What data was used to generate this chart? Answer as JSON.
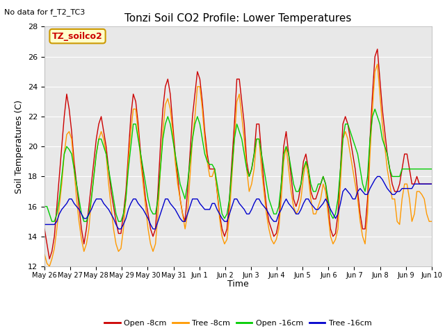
{
  "title": "Tonzi Soil CO2 Profile: Lower Temperatures",
  "subtitle": "No data for f_T2_TC3",
  "ylabel": "Soil Temperatures (C)",
  "xlabel": "Time",
  "ylim": [
    12,
    28
  ],
  "background_color": "#e8e8e8",
  "legend_label": "TZ_soilco2",
  "tick_labels": [
    "May 26",
    "May 27",
    "May 28",
    "May 29",
    "May 30",
    "May 31",
    "Jun 1",
    "Jun 2",
    "Jun 3",
    "Jun 4",
    "Jun 5",
    "Jun 6",
    "Jun 7",
    "Jun 8",
    "Jun 9",
    "Jun 10"
  ],
  "series": {
    "open_8cm": {
      "color": "#cc0000",
      "label": "Open -8cm",
      "values": [
        14.5,
        13.5,
        12.5,
        13.0,
        14.0,
        16.0,
        18.0,
        20.0,
        22.0,
        23.5,
        22.5,
        21.0,
        19.0,
        17.5,
        16.0,
        14.5,
        13.5,
        14.5,
        16.0,
        17.5,
        19.0,
        20.5,
        21.5,
        22.0,
        21.0,
        20.0,
        18.5,
        17.0,
        16.0,
        15.0,
        14.2,
        14.2,
        15.5,
        17.0,
        19.5,
        22.0,
        23.5,
        23.0,
        21.5,
        19.5,
        18.0,
        16.5,
        15.5,
        14.5,
        14.0,
        14.5,
        17.0,
        20.0,
        22.5,
        24.0,
        24.5,
        23.5,
        21.5,
        19.5,
        18.0,
        16.5,
        15.5,
        15.0,
        17.0,
        19.5,
        22.0,
        23.5,
        25.0,
        24.5,
        23.0,
        21.0,
        19.5,
        18.5,
        18.5,
        18.5,
        17.0,
        15.5,
        14.5,
        14.0,
        14.5,
        16.5,
        19.0,
        21.5,
        24.5,
        24.5,
        23.0,
        21.5,
        19.0,
        18.0,
        18.5,
        19.5,
        21.5,
        21.5,
        19.5,
        17.5,
        16.0,
        15.0,
        14.5,
        14.0,
        14.2,
        15.0,
        17.5,
        20.0,
        21.0,
        19.5,
        18.0,
        16.5,
        16.0,
        16.5,
        17.5,
        19.0,
        19.5,
        18.5,
        17.0,
        16.5,
        16.5,
        17.0,
        17.5,
        18.0,
        17.5,
        16.0,
        14.5,
        14.0,
        14.2,
        15.5,
        18.5,
        21.5,
        22.0,
        21.5,
        20.5,
        19.5,
        18.5,
        17.0,
        15.5,
        14.5,
        14.5,
        16.5,
        20.5,
        23.5,
        26.0,
        26.5,
        24.5,
        22.5,
        21.0,
        19.5,
        18.5,
        17.5,
        17.0,
        17.0,
        17.5,
        18.5,
        19.5,
        19.5,
        18.5,
        17.5,
        17.5,
        18.0,
        17.5,
        17.5,
        17.5,
        17.5,
        17.5,
        17.5
      ]
    },
    "tree_8cm": {
      "color": "#ff9900",
      "label": "Tree -8cm",
      "values": [
        12.8,
        12.2,
        12.0,
        12.5,
        13.2,
        14.5,
        16.0,
        17.5,
        19.5,
        20.8,
        21.0,
        20.5,
        18.5,
        16.5,
        15.0,
        13.8,
        13.0,
        13.5,
        14.5,
        16.5,
        18.0,
        19.5,
        20.5,
        21.0,
        20.5,
        19.5,
        17.5,
        16.0,
        14.5,
        13.5,
        13.0,
        13.2,
        14.5,
        16.5,
        19.0,
        21.0,
        22.5,
        22.5,
        21.0,
        19.0,
        17.5,
        16.0,
        14.5,
        13.5,
        13.0,
        13.5,
        15.5,
        18.5,
        21.0,
        22.8,
        23.2,
        22.5,
        21.0,
        19.0,
        17.5,
        16.5,
        15.5,
        14.5,
        15.5,
        18.0,
        20.5,
        22.0,
        24.0,
        24.0,
        22.5,
        20.5,
        19.0,
        18.0,
        18.0,
        18.5,
        17.0,
        15.2,
        14.0,
        13.5,
        13.8,
        15.5,
        18.0,
        20.5,
        23.0,
        23.5,
        22.0,
        20.5,
        18.5,
        17.0,
        17.5,
        18.5,
        20.5,
        20.5,
        18.5,
        17.0,
        15.5,
        14.5,
        13.8,
        13.5,
        13.8,
        14.5,
        16.5,
        19.0,
        20.0,
        18.5,
        17.0,
        16.0,
        15.5,
        15.8,
        16.5,
        18.0,
        19.0,
        18.0,
        16.5,
        15.5,
        15.5,
        16.0,
        16.5,
        17.5,
        17.0,
        15.5,
        14.0,
        13.5,
        13.8,
        14.5,
        17.5,
        20.5,
        21.0,
        20.5,
        19.5,
        18.5,
        17.5,
        16.5,
        15.0,
        14.0,
        13.5,
        15.5,
        19.5,
        22.5,
        25.0,
        25.5,
        23.5,
        21.5,
        20.0,
        18.5,
        17.5,
        16.5,
        16.5,
        15.0,
        14.8,
        16.5,
        17.5,
        17.5,
        16.5,
        15.0,
        15.5,
        17.0,
        17.0,
        16.8,
        16.5,
        15.5,
        15.0,
        15.0
      ]
    },
    "open_16cm": {
      "color": "#00cc00",
      "label": "Open -16cm",
      "values": [
        16.0,
        16.0,
        15.5,
        15.0,
        15.0,
        15.5,
        16.5,
        18.0,
        19.5,
        20.0,
        19.8,
        19.5,
        18.5,
        17.5,
        16.5,
        15.5,
        15.0,
        15.0,
        15.5,
        16.5,
        18.0,
        19.5,
        20.5,
        20.5,
        20.0,
        19.5,
        18.5,
        17.5,
        16.5,
        15.5,
        15.0,
        15.0,
        15.5,
        16.5,
        18.5,
        20.0,
        21.5,
        21.5,
        20.5,
        19.5,
        18.5,
        17.5,
        16.5,
        15.8,
        15.5,
        15.5,
        16.5,
        18.5,
        20.5,
        21.5,
        22.0,
        21.5,
        20.5,
        19.5,
        18.5,
        17.5,
        17.0,
        16.5,
        17.5,
        19.0,
        20.5,
        21.5,
        22.0,
        21.5,
        20.5,
        19.5,
        19.0,
        18.8,
        18.8,
        18.5,
        17.5,
        16.5,
        15.5,
        15.2,
        15.5,
        16.5,
        18.5,
        20.5,
        21.5,
        21.0,
        20.5,
        19.5,
        18.5,
        18.0,
        18.5,
        19.5,
        20.5,
        20.5,
        19.5,
        18.5,
        17.5,
        16.5,
        16.0,
        15.5,
        15.5,
        16.0,
        17.5,
        19.5,
        20.0,
        19.5,
        18.5,
        17.5,
        17.0,
        17.0,
        17.5,
        18.5,
        19.0,
        18.5,
        17.5,
        17.0,
        17.0,
        17.5,
        17.5,
        18.0,
        17.5,
        16.5,
        15.5,
        15.2,
        15.5,
        16.5,
        18.5,
        20.5,
        21.5,
        21.5,
        21.0,
        20.5,
        20.0,
        19.5,
        18.5,
        17.5,
        17.0,
        18.0,
        20.5,
        22.0,
        22.5,
        22.0,
        21.5,
        20.5,
        20.0,
        19.5,
        18.5,
        18.0,
        18.0,
        18.0,
        18.0,
        18.5,
        18.5,
        18.5,
        18.5,
        18.5,
        18.5,
        18.5,
        18.5,
        18.5,
        18.5,
        18.5,
        18.5,
        18.5
      ]
    },
    "tree_16cm": {
      "color": "#0000cc",
      "label": "Tree -16cm",
      "values": [
        14.8,
        14.8,
        14.8,
        14.8,
        14.8,
        15.0,
        15.5,
        15.8,
        16.0,
        16.2,
        16.5,
        16.5,
        16.2,
        16.0,
        15.8,
        15.5,
        15.2,
        15.2,
        15.5,
        15.8,
        16.2,
        16.5,
        16.5,
        16.5,
        16.2,
        16.0,
        15.8,
        15.5,
        15.2,
        14.8,
        14.5,
        14.5,
        14.8,
        15.2,
        15.8,
        16.2,
        16.5,
        16.5,
        16.2,
        16.0,
        15.8,
        15.5,
        15.2,
        14.8,
        14.5,
        14.5,
        15.0,
        15.5,
        16.0,
        16.5,
        16.5,
        16.2,
        16.0,
        15.8,
        15.5,
        15.2,
        15.0,
        15.0,
        15.5,
        16.0,
        16.5,
        16.5,
        16.5,
        16.2,
        16.0,
        15.8,
        15.8,
        15.8,
        16.2,
        16.2,
        15.8,
        15.5,
        15.2,
        15.0,
        15.0,
        15.5,
        16.0,
        16.5,
        16.5,
        16.2,
        16.0,
        15.8,
        15.5,
        15.5,
        15.8,
        16.2,
        16.5,
        16.5,
        16.2,
        16.0,
        15.8,
        15.5,
        15.2,
        15.0,
        15.0,
        15.5,
        15.8,
        16.2,
        16.5,
        16.2,
        16.0,
        15.8,
        15.5,
        15.5,
        15.8,
        16.2,
        16.5,
        16.5,
        16.2,
        16.0,
        15.8,
        15.8,
        16.0,
        16.2,
        16.5,
        16.2,
        15.8,
        15.5,
        15.2,
        15.5,
        16.2,
        17.0,
        17.2,
        17.0,
        16.8,
        16.5,
        16.5,
        17.0,
        17.2,
        17.0,
        16.8,
        16.8,
        17.2,
        17.5,
        17.8,
        18.0,
        18.0,
        17.8,
        17.5,
        17.2,
        17.0,
        16.8,
        16.8,
        17.0,
        17.0,
        17.2,
        17.2,
        17.2,
        17.2,
        17.2,
        17.5,
        17.5,
        17.5,
        17.5,
        17.5,
        17.5,
        17.5,
        17.5
      ]
    }
  }
}
